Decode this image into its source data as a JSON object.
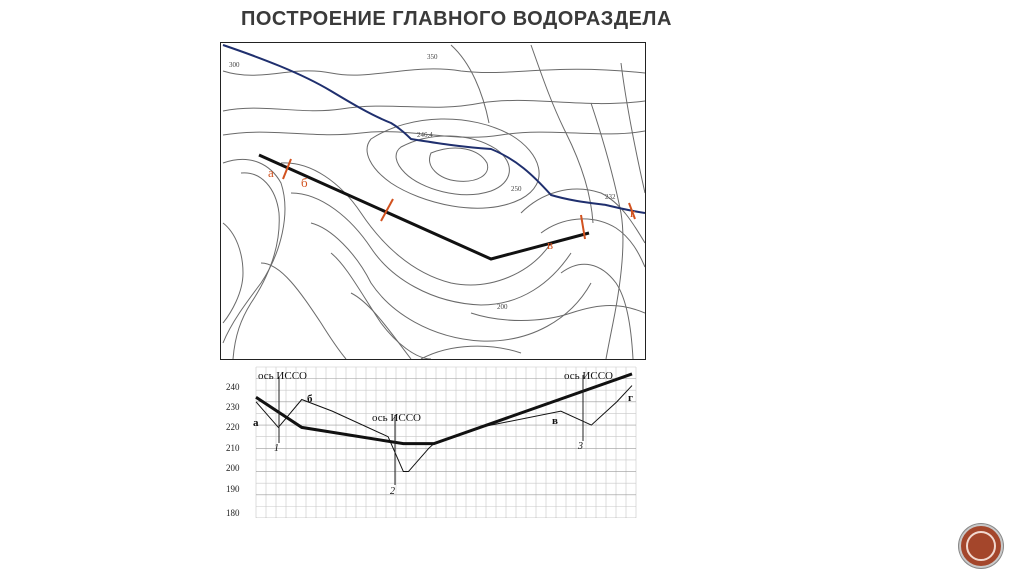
{
  "slide": {
    "title": "ПОСТРОЕНИЕ ГЛАВНОГО ВОДОРАЗДЕЛА"
  },
  "map": {
    "contour_labels": [
      "300",
      "350",
      "246.4",
      "250",
      "232",
      "200"
    ],
    "point_labels": [
      "а",
      "б",
      "в",
      "г"
    ],
    "colors": {
      "river": "#1f2f6e",
      "divide": "#111111",
      "marker": "#d2521f",
      "contour": "#6a6a6a"
    }
  },
  "profile": {
    "y_ticks": [
      "240",
      "230",
      "220",
      "210",
      "200",
      "190",
      "180"
    ],
    "axis_labels": [
      "ось ИССО",
      "ось ИССО",
      "ось ИССО"
    ],
    "point_labels": [
      "а",
      "б",
      "в",
      "г"
    ],
    "numbers": [
      "1",
      "2",
      "3"
    ]
  },
  "chart_data": {
    "type": "line",
    "title": "",
    "ylim": [
      180,
      245
    ],
    "y_ticks": [
      240,
      230,
      220,
      210,
      200,
      190,
      180
    ],
    "series": [
      {
        "x": [
          0,
          45,
          145,
          175,
          370
        ],
        "y": [
          232,
          219,
          212,
          212,
          242
        ]
      },
      {
        "x": [
          0,
          22,
          45,
          75,
          130,
          145,
          150,
          170,
          175,
          220,
          300,
          330,
          355,
          370
        ],
        "y": [
          230,
          219,
          231,
          226,
          215,
          200,
          200,
          210,
          212,
          219,
          226,
          220,
          230,
          237
        ]
      }
    ]
  }
}
